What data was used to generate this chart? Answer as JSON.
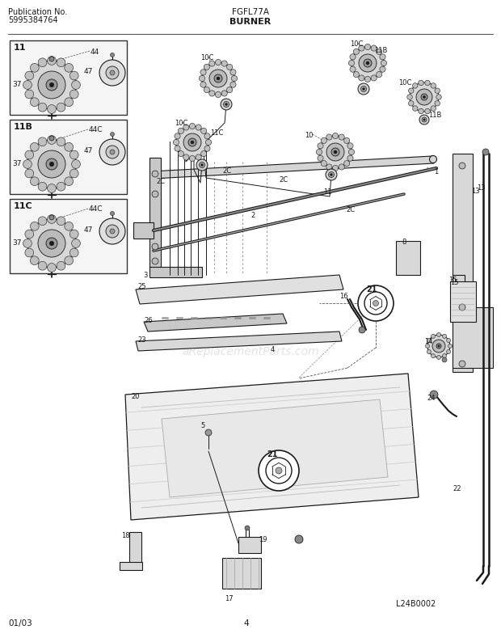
{
  "title_pub": "Publication No.",
  "pub_num": "5995384764",
  "model": "FGFL77A",
  "section": "BURNER",
  "footer_date": "01/03",
  "footer_page": "4",
  "diagram_id": "L24B0002",
  "watermark": "aReplacementParts.com",
  "bg_color": "#ffffff",
  "lc": "#1a1a1a",
  "gray1": "#aaaaaa",
  "gray2": "#cccccc",
  "gray3": "#888888"
}
